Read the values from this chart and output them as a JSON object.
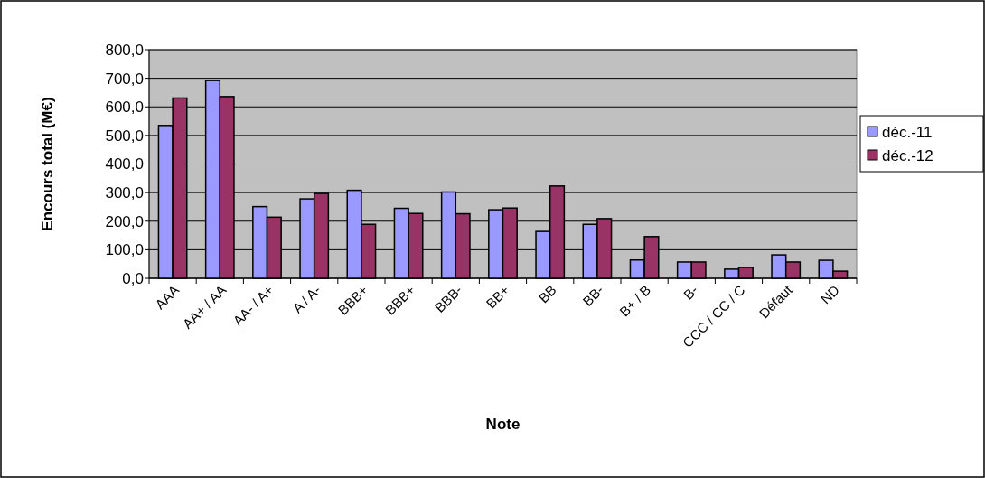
{
  "chart_data": {
    "type": "bar",
    "xlabel": "Note",
    "ylabel": "Encours total (M€)",
    "categories": [
      "AAA",
      "AA+ / AA",
      "AA- / A+",
      "A / A-",
      "BBB+",
      "BBB+",
      "BBB-",
      "BB+",
      "BB",
      "BB-",
      "B+ / B",
      "B-",
      "CCC / CC / C",
      "Défaut",
      "ND"
    ],
    "series": [
      {
        "name": "déc.-11",
        "color": "#9999ff",
        "values": [
          535,
          692,
          251,
          278,
          308,
          245,
          302,
          240,
          164,
          189,
          64,
          57,
          32,
          82,
          63
        ]
      },
      {
        "name": "déc.-12",
        "color": "#993366",
        "values": [
          631,
          636,
          214,
          297,
          189,
          227,
          226,
          246,
          323,
          209,
          146,
          57,
          38,
          57,
          25
        ]
      }
    ],
    "ylim": [
      0,
      800
    ],
    "yticks": [
      {
        "value": 0,
        "label": "0,0"
      },
      {
        "value": 100,
        "label": "100,0"
      },
      {
        "value": 200,
        "label": "200,0"
      },
      {
        "value": 300,
        "label": "300,0"
      },
      {
        "value": 400,
        "label": "400,0"
      },
      {
        "value": 500,
        "label": "500,0"
      },
      {
        "value": 600,
        "label": "600,0"
      },
      {
        "value": 700,
        "label": "700,0"
      },
      {
        "value": 800,
        "label": "800,0"
      }
    ],
    "grid": "y",
    "legend": "right"
  }
}
